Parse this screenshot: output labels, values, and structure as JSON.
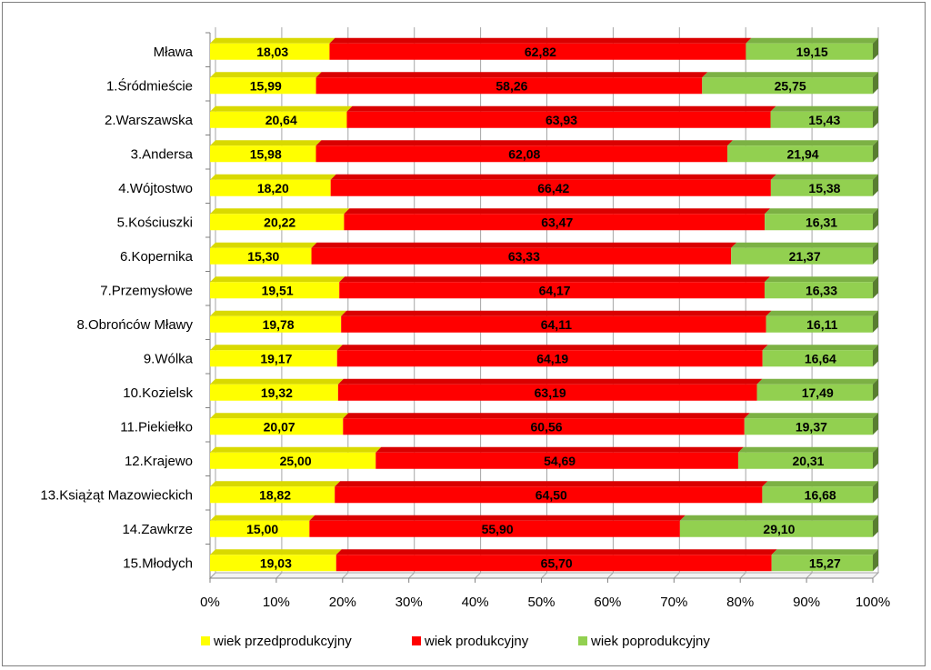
{
  "chart_data": {
    "type": "bar",
    "orientation": "horizontal",
    "stacked": "percent",
    "categories": [
      "Mława",
      "1.Śródmieście",
      "2.Warszawska",
      "3.Andersa",
      "4.Wójtostwo",
      "5.Kościuszki",
      "6.Kopernika",
      "7.Przemysłowe",
      "8.Obrońców Mławy",
      "9.Wólka",
      "10.Kozielsk",
      "11.Piekiełko",
      "12.Krajewo",
      "13.Książąt Mazowieckich",
      "14.Zawkrze",
      "15.Młodych"
    ],
    "series": [
      {
        "name": "wiek przedprodukcyjny",
        "color": "#ffff00",
        "values": [
          18.03,
          15.99,
          20.64,
          15.98,
          18.2,
          20.22,
          15.3,
          19.51,
          19.78,
          19.17,
          19.32,
          20.07,
          25.0,
          18.82,
          15.0,
          19.03
        ],
        "labels": [
          "18,03",
          "15,99",
          "20,64",
          "15,98",
          "18,20",
          "20,22",
          "15,30",
          "19,51",
          "19,78",
          "19,17",
          "19,32",
          "20,07",
          "25,00",
          "18,82",
          "15,00",
          "19,03"
        ]
      },
      {
        "name": "wiek produkcyjny",
        "color": "#ff0000",
        "values": [
          62.82,
          58.26,
          63.93,
          62.08,
          66.42,
          63.47,
          63.33,
          64.17,
          64.11,
          64.19,
          63.19,
          60.56,
          54.69,
          64.5,
          55.9,
          65.7
        ],
        "labels": [
          "62,82",
          "58,26",
          "63,93",
          "62,08",
          "66,42",
          "63,47",
          "63,33",
          "64,17",
          "64,11",
          "64,19",
          "63,19",
          "60,56",
          "54,69",
          "64,50",
          "55,90",
          "65,70"
        ]
      },
      {
        "name": "wiek poprodukcyjny",
        "color": "#92d050",
        "values": [
          19.15,
          25.75,
          15.43,
          21.94,
          15.38,
          16.31,
          21.37,
          16.33,
          16.11,
          16.64,
          17.49,
          19.37,
          20.31,
          16.68,
          29.1,
          15.27
        ],
        "labels": [
          "19,15",
          "25,75",
          "15,43",
          "21,94",
          "15,38",
          "16,31",
          "21,37",
          "16,33",
          "16,11",
          "16,64",
          "17,49",
          "19,37",
          "20,31",
          "16,68",
          "29,10",
          "15,27"
        ]
      }
    ],
    "xticks": [
      "0%",
      "10%",
      "20%",
      "30%",
      "40%",
      "50%",
      "60%",
      "70%",
      "80%",
      "90%",
      "100%"
    ],
    "xlim": [
      0,
      100
    ],
    "grid": true,
    "legend_position": "bottom"
  }
}
